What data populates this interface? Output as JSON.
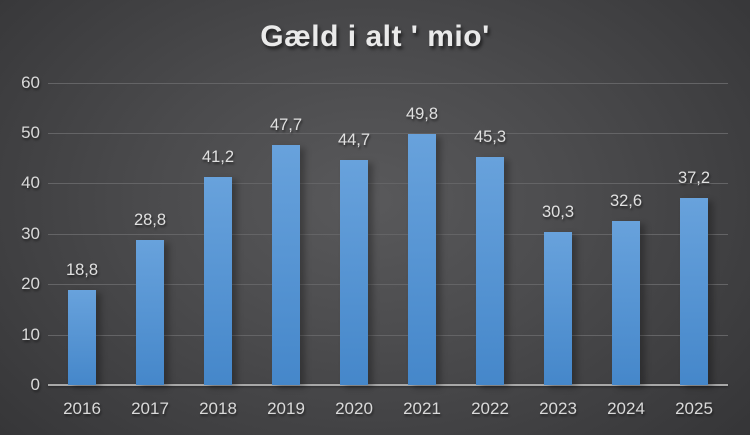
{
  "chart_data": {
    "type": "bar",
    "title": "Gæld i alt ' mio'",
    "categories": [
      "2016",
      "2017",
      "2018",
      "2019",
      "2020",
      "2021",
      "2022",
      "2023",
      "2024",
      "2025"
    ],
    "values": [
      18.8,
      28.8,
      41.2,
      47.7,
      44.7,
      49.8,
      45.3,
      30.3,
      32.6,
      37.2
    ],
    "value_labels": [
      "18,8",
      "28,8",
      "41,2",
      "47,7",
      "44,7",
      "49,8",
      "45,3",
      "30,3",
      "32,6",
      "37,2"
    ],
    "xlabel": "",
    "ylabel": "",
    "ylim": [
      0,
      60
    ],
    "yticks": [
      0,
      10,
      20,
      30,
      40,
      50,
      60
    ],
    "grid": true,
    "legend": "none",
    "colors": {
      "bar_top": "#68a2dc",
      "bar_bottom": "#4587ca",
      "gridline": "#646466",
      "axis_line": "#a8a8a8",
      "tick_label": "#d9d9d9",
      "data_label": "#e0e0e0",
      "title": "#eaeaea",
      "background_center": "#59595b",
      "background_edge": "#262628"
    }
  }
}
